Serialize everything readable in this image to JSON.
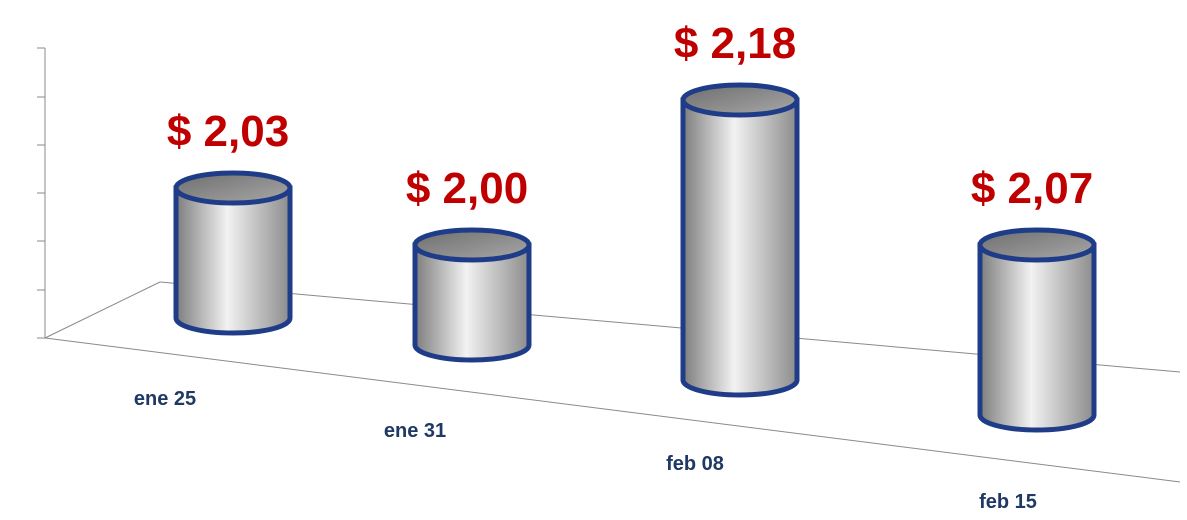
{
  "chart_data": {
    "type": "bar",
    "categories": [
      "ene 25",
      "ene 31",
      "feb 08",
      "feb 15"
    ],
    "values": [
      2.03,
      2.0,
      2.18,
      2.07
    ],
    "value_labels": [
      "$ 2,03",
      "$ 2,00",
      "$ 2,18",
      "$ 2,07"
    ],
    "color": "#1f3c88",
    "label_color": "#c00000",
    "ylim": [
      1.9,
      2.2
    ]
  }
}
